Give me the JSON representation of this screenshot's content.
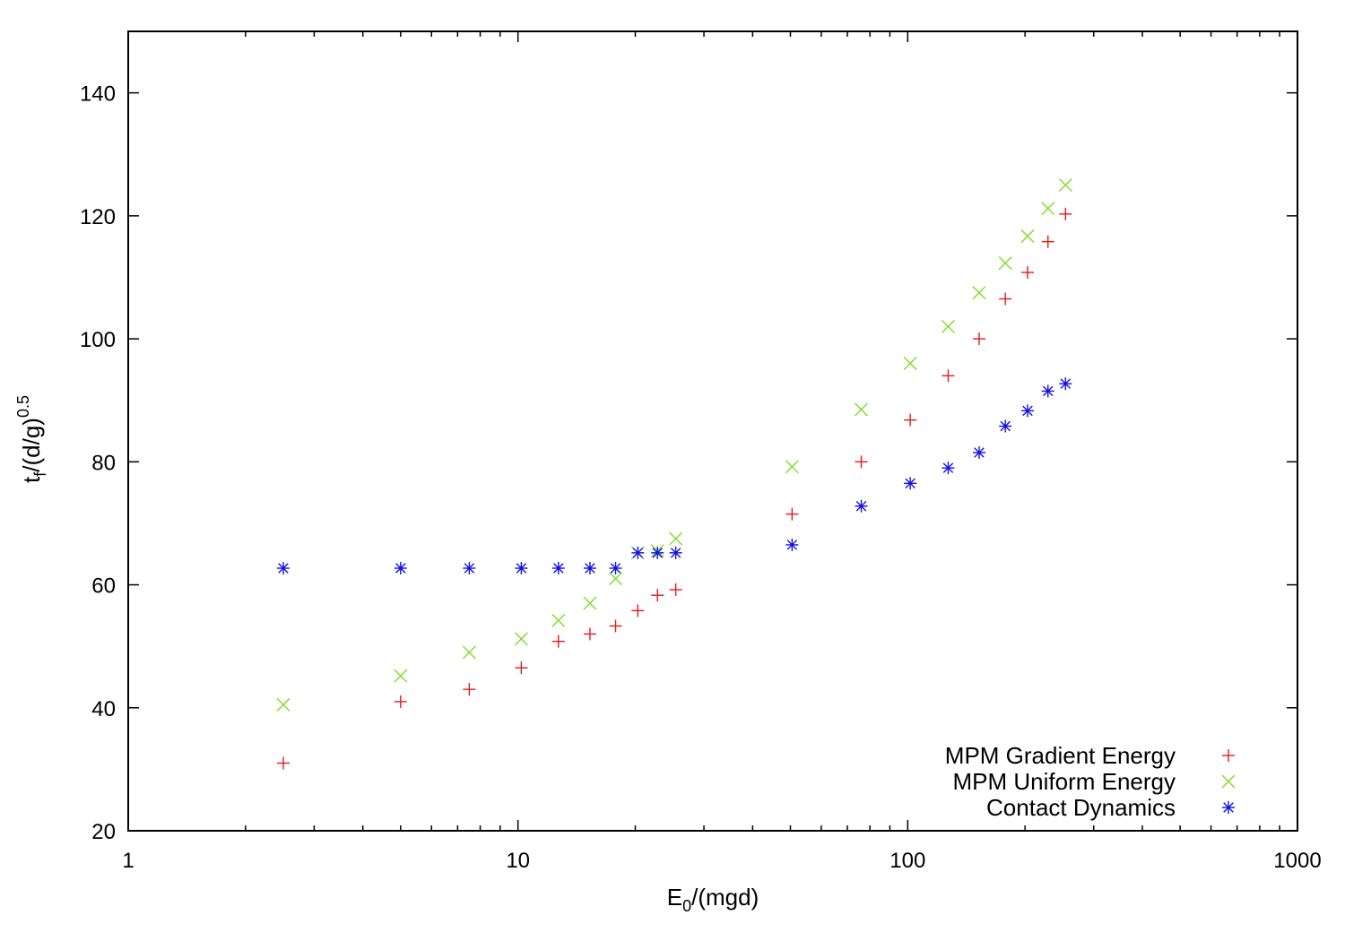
{
  "chart_data": {
    "type": "scatter",
    "xscale": "log",
    "xlim": [
      1,
      1000
    ],
    "ylim": [
      20,
      150
    ],
    "xticks": [
      1,
      10,
      100,
      1000
    ],
    "xtick_labels": [
      "1",
      "10",
      "100",
      "1000"
    ],
    "yticks": [
      20,
      40,
      60,
      80,
      100,
      120,
      140
    ],
    "ytick_labels": [
      "20",
      "40",
      "60",
      "80",
      "100",
      "120",
      "140"
    ],
    "xlabel": {
      "base": "E",
      "sub": "0",
      "rest": "/(mgd)"
    },
    "ylabel": {
      "base": "t",
      "sub": "f",
      "mid": "/(d/g)",
      "sup": "0.5"
    },
    "grid": false,
    "legend_position": "bottom-right",
    "series": [
      {
        "name": "MPM Gradient Energy",
        "color": "#e31a1c",
        "marker": "plus",
        "x": [
          2.5,
          5.0,
          7.5,
          10.2,
          12.7,
          15.3,
          17.8,
          20.3,
          22.8,
          25.4,
          50.5,
          76,
          101.5,
          127,
          152.5,
          178,
          203,
          229,
          254
        ],
        "y": [
          31,
          41,
          43,
          46.5,
          50.8,
          52,
          53.3,
          55.8,
          58.3,
          59.2,
          71.5,
          80,
          86.8,
          94,
          100,
          106.5,
          110.8,
          115.8,
          120.3
        ]
      },
      {
        "name": "MPM Uniform Energy",
        "color": "#7fdc2a",
        "marker": "cross",
        "x": [
          2.5,
          5.0,
          7.5,
          10.2,
          12.7,
          15.3,
          17.8,
          20.3,
          22.8,
          25.4,
          50.5,
          76,
          101.5,
          127,
          152.5,
          178,
          203,
          229,
          254
        ],
        "y": [
          40.5,
          45.2,
          49,
          51.2,
          54.2,
          57,
          61,
          65.2,
          65.5,
          67.5,
          79.2,
          88.5,
          96,
          102,
          107.5,
          112.3,
          116.7,
          121.2,
          125
        ]
      },
      {
        "name": "Contact Dynamics",
        "color": "#1010e0",
        "marker": "star",
        "x": [
          2.5,
          5.0,
          7.5,
          10.2,
          12.7,
          15.3,
          17.8,
          20.3,
          22.8,
          25.4,
          50.5,
          76,
          101.5,
          127,
          152.5,
          178,
          203,
          229,
          254
        ],
        "y": [
          62.7,
          62.7,
          62.7,
          62.7,
          62.7,
          62.7,
          62.7,
          65.2,
          65.2,
          65.2,
          66.5,
          72.8,
          76.5,
          79,
          81.5,
          85.8,
          88.3,
          91.5,
          92.7
        ]
      }
    ]
  }
}
